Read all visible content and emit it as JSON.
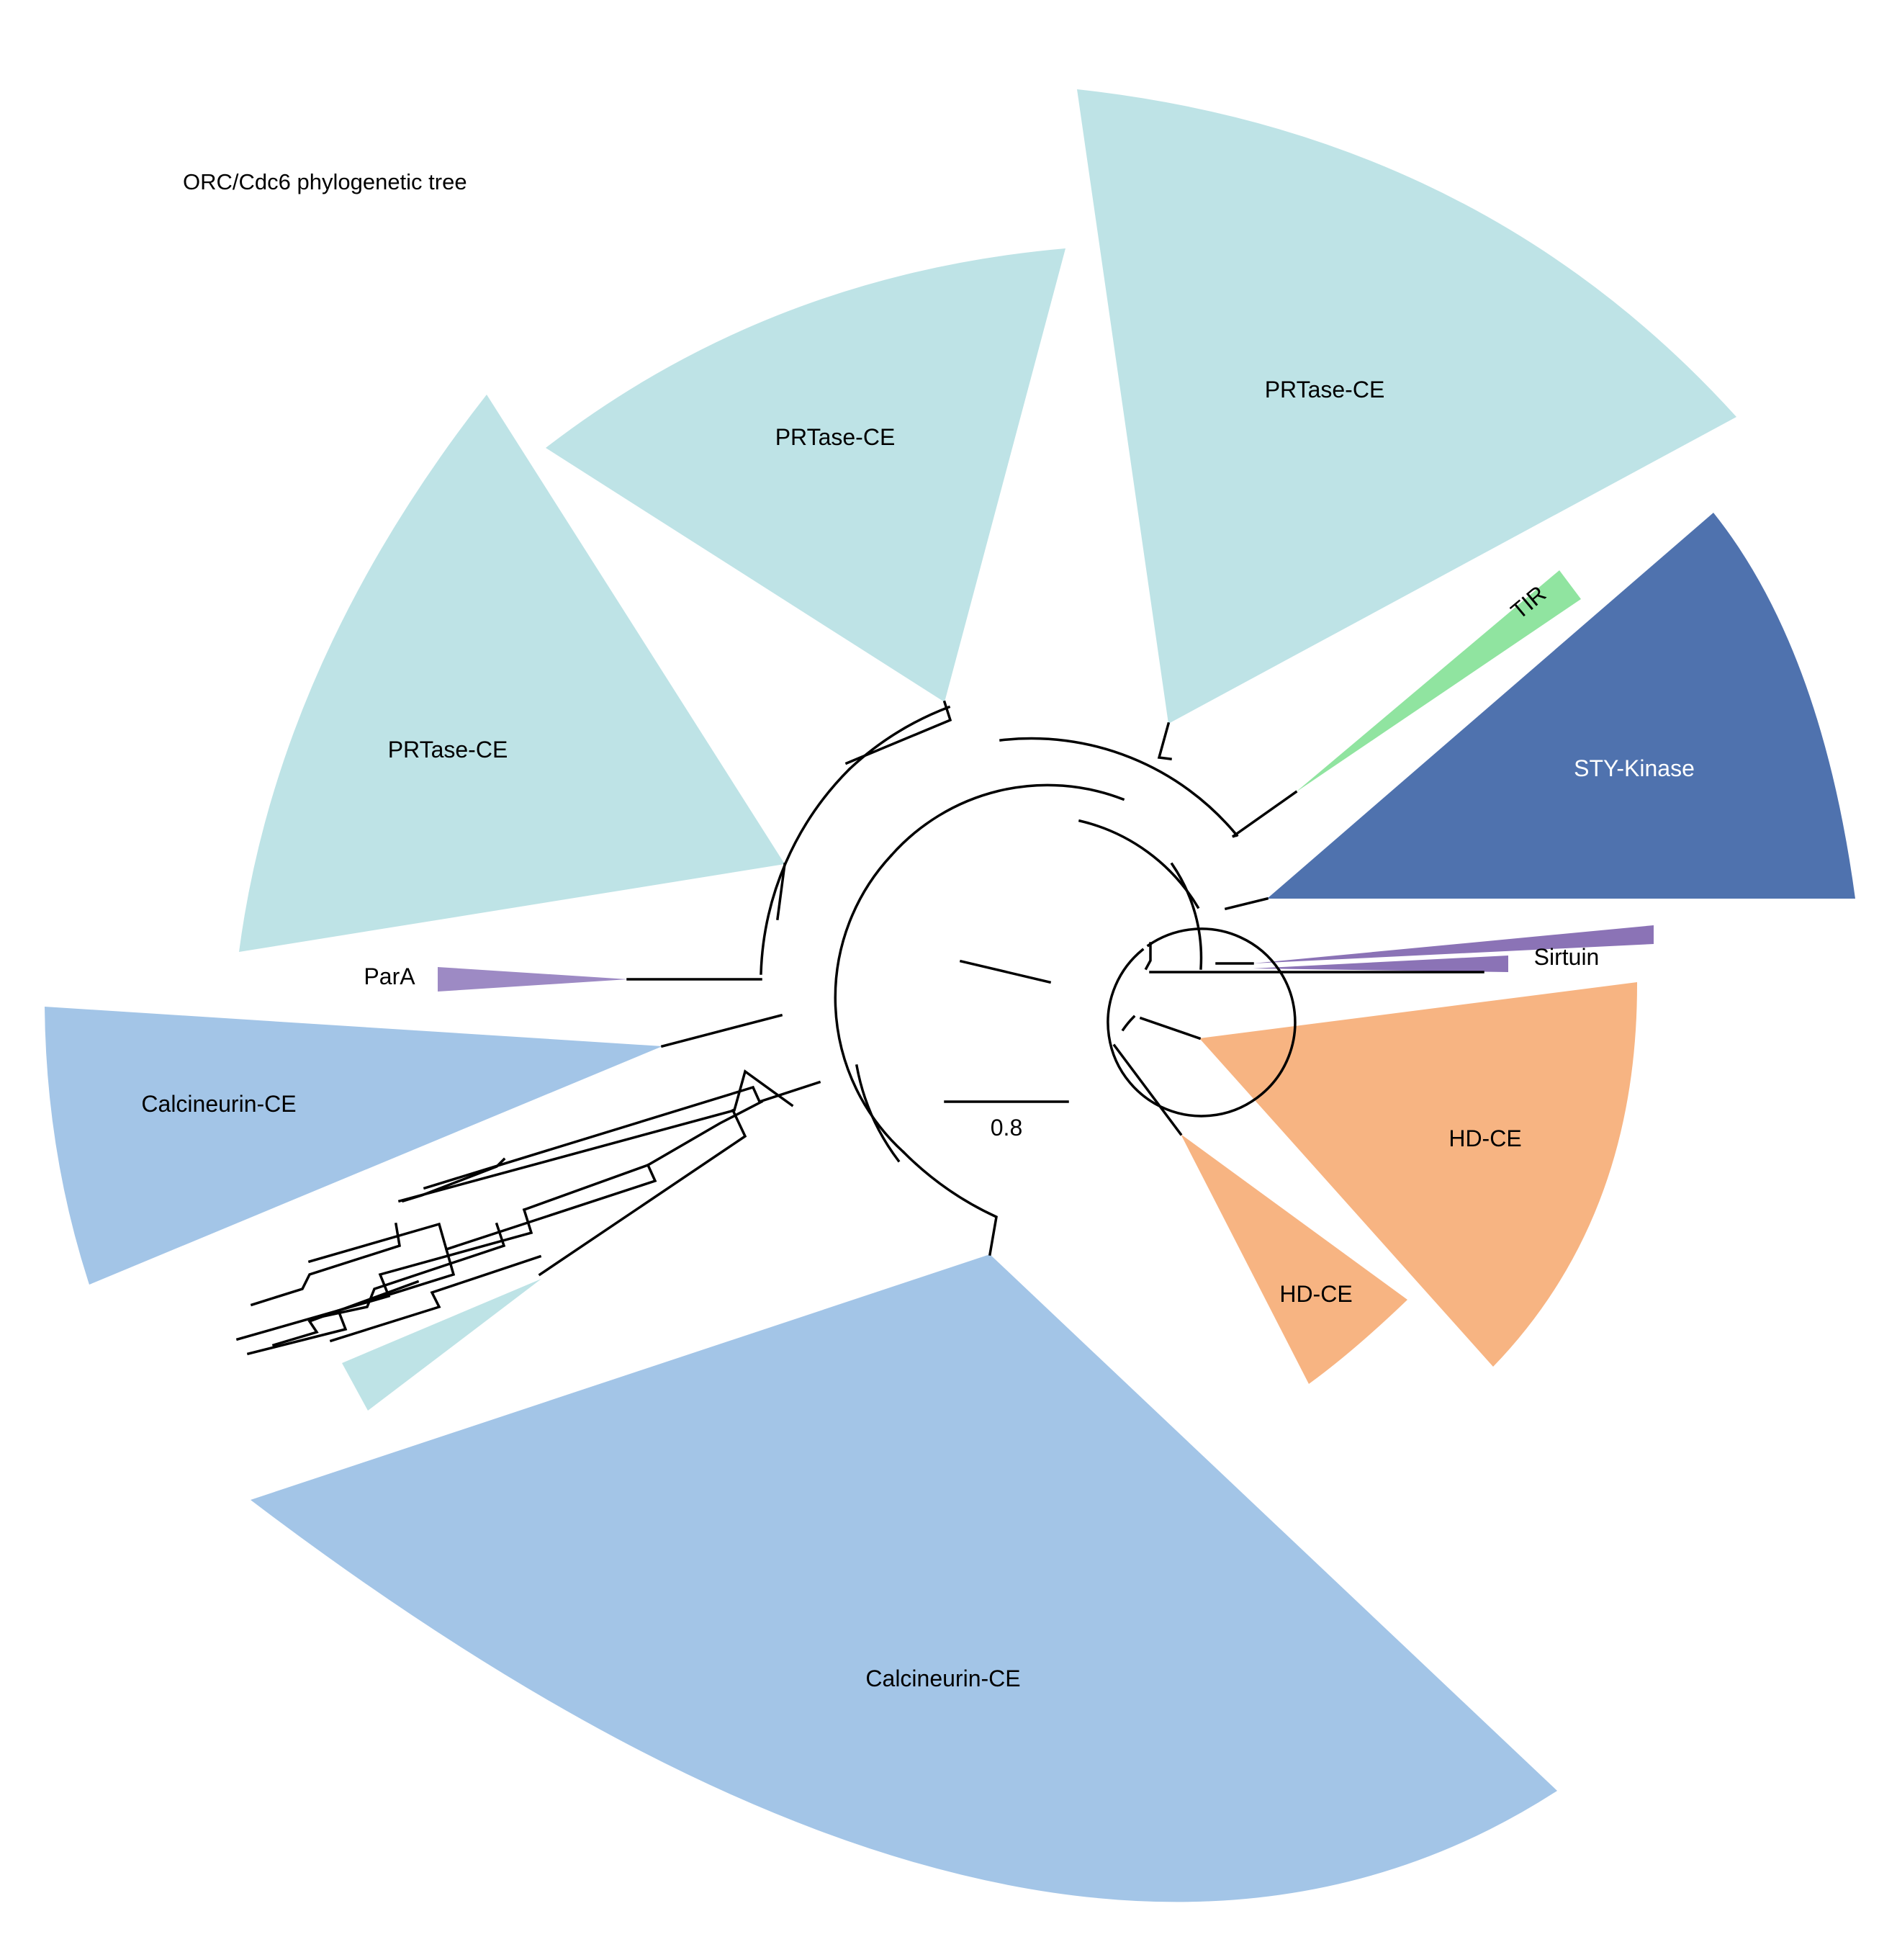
{
  "title": "ORC/Cdc6 phylogenetic tree",
  "scale_bar": {
    "label": "0.8",
    "value": 0.8
  },
  "colors": {
    "prtase": "#bee3e6",
    "calcineurin": "#a3c5e7",
    "hd": "#f7b482",
    "sty_kinase": "#4f72ae",
    "tir": "#90e4a0",
    "sirtuin": "#8b73b6",
    "para": "#9d8ac4",
    "branch": "#000000"
  },
  "clades": [
    {
      "id": "prtase-ce-1",
      "label": "PRTase-CE",
      "group": "PRTase-CE"
    },
    {
      "id": "prtase-ce-2",
      "label": "PRTase-CE",
      "group": "PRTase-CE"
    },
    {
      "id": "prtase-ce-3",
      "label": "PRTase-CE",
      "group": "PRTase-CE"
    },
    {
      "id": "tir",
      "label": "TIR",
      "group": "TIR"
    },
    {
      "id": "sty-kinase",
      "label": "STY-Kinase",
      "group": "STY-Kinase"
    },
    {
      "id": "sirtuin",
      "label": "Sirtuin",
      "group": "Sirtuin"
    },
    {
      "id": "hd-ce-1",
      "label": "HD-CE",
      "group": "HD-CE"
    },
    {
      "id": "hd-ce-2",
      "label": "HD-CE",
      "group": "HD-CE"
    },
    {
      "id": "calcineurin-ce-1",
      "label": "Calcineurin-CE",
      "group": "Calcineurin-CE"
    },
    {
      "id": "calcineurin-ce-2",
      "label": "Calcineurin-CE",
      "group": "Calcineurin-CE"
    },
    {
      "id": "para",
      "label": "ParA",
      "group": "ParA"
    }
  ]
}
